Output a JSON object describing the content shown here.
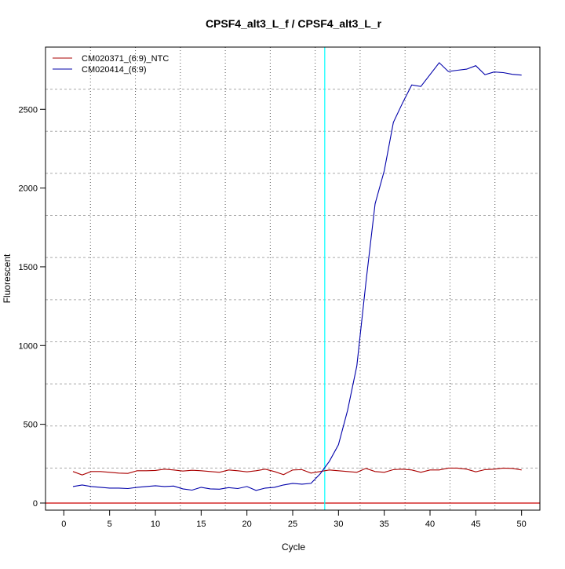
{
  "chart_data": {
    "type": "line",
    "title": "CPSF4_alt3_L_f / CPSF4_alt3_L_r",
    "xlabel": "Cycle",
    "ylabel": "Fluorescent",
    "xlim": [
      -2,
      52
    ],
    "ylim": [
      -45,
      2895
    ],
    "xticks": [
      0,
      5,
      10,
      15,
      20,
      25,
      30,
      35,
      40,
      45,
      50
    ],
    "yticks": [
      0,
      500,
      1000,
      1500,
      2000,
      2500
    ],
    "grid": true,
    "legend_position": "top-left",
    "threshold_cycle": 28.5,
    "threshold_color": "#00ffff",
    "baseline_value": 0,
    "baseline_color": "#cc0000",
    "x": [
      1,
      2,
      3,
      4,
      5,
      6,
      7,
      8,
      9,
      10,
      11,
      12,
      13,
      14,
      15,
      16,
      17,
      18,
      19,
      20,
      21,
      22,
      23,
      24,
      25,
      26,
      27,
      28,
      29,
      30,
      31,
      32,
      33,
      34,
      35,
      36,
      37,
      38,
      39,
      40,
      41,
      42,
      43,
      44,
      45,
      46,
      47,
      48,
      49,
      50
    ],
    "series": [
      {
        "name": "CM020371_(6:9)_NTC",
        "color": "#aa0000",
        "values": [
          200,
          178,
          200,
          200,
          195,
          190,
          188,
          205,
          205,
          207,
          215,
          210,
          203,
          208,
          205,
          200,
          195,
          210,
          205,
          198,
          205,
          215,
          200,
          180,
          210,
          212,
          190,
          200,
          210,
          205,
          200,
          195,
          220,
          200,
          195,
          212,
          215,
          210,
          195,
          210,
          210,
          222,
          222,
          215,
          198,
          212,
          215,
          222,
          220,
          210
        ]
      },
      {
        "name": "CM020414_(6:9)",
        "color": "#0000aa",
        "values": [
          105,
          115,
          105,
          100,
          95,
          95,
          92,
          100,
          105,
          110,
          105,
          108,
          90,
          82,
          100,
          90,
          88,
          98,
          92,
          105,
          80,
          95,
          100,
          115,
          125,
          120,
          125,
          185,
          265,
          370,
          590,
          870,
          1400,
          1900,
          2110,
          2417,
          2540,
          2655,
          2645,
          2720,
          2796,
          2740,
          2748,
          2755,
          2777,
          2720,
          2737,
          2733,
          2722,
          2717
        ]
      }
    ]
  }
}
